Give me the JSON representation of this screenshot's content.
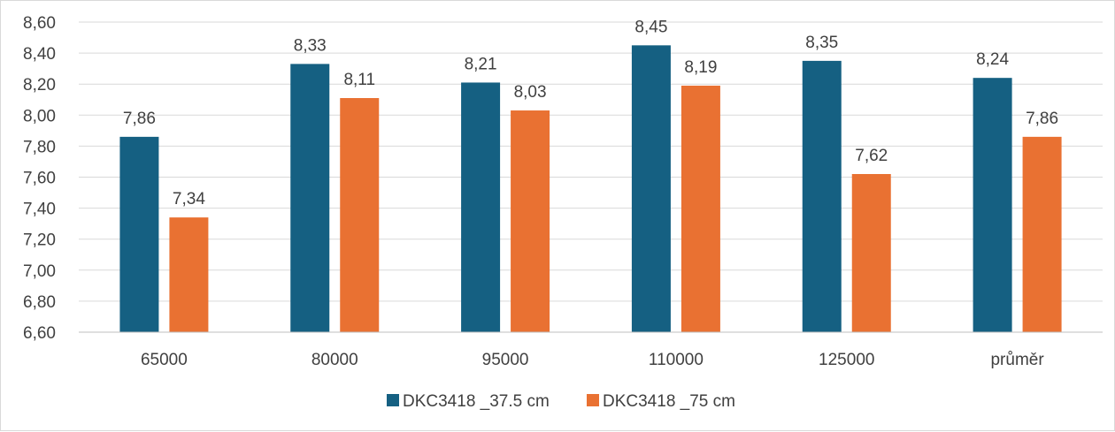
{
  "chart_data": {
    "type": "bar",
    "categories": [
      "65000",
      "80000",
      "95000",
      "110000",
      "125000",
      "průměr"
    ],
    "series": [
      {
        "name": "DKC3418 _37.5 cm",
        "color": "#156082",
        "values": [
          7.86,
          8.33,
          8.21,
          8.45,
          8.35,
          8.24
        ],
        "labels": [
          "7,86",
          "8,33",
          "8,21",
          "8,45",
          "8,35",
          "8,24"
        ]
      },
      {
        "name": "DKC3418 _75 cm",
        "color": "#E97132",
        "values": [
          7.34,
          8.11,
          8.03,
          8.19,
          7.62,
          7.86
        ],
        "labels": [
          "7,34",
          "8,11",
          "8,03",
          "8,19",
          "7,62",
          "7,86"
        ]
      }
    ],
    "ylim": [
      6.6,
      8.6
    ],
    "yticks": [
      "6,60",
      "6,80",
      "7,00",
      "7,20",
      "7,40",
      "7,60",
      "7,80",
      "8,00",
      "8,20",
      "8,40",
      "8,60"
    ],
    "grid": true,
    "legend_position": "bottom",
    "title": "",
    "xlabel": "",
    "ylabel": ""
  }
}
